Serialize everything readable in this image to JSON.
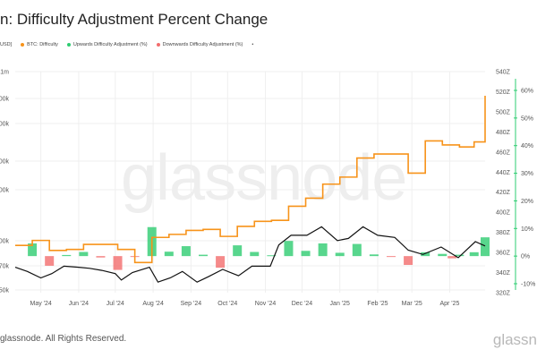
{
  "header": {
    "title": "n: Difficulty Adjustment Percent Change"
  },
  "legend": {
    "currency": "USD]",
    "items": [
      {
        "label": "BTC: Difficulty",
        "color": "#f7931a"
      },
      {
        "label": "Upwards Difficulty Adjustment (%)",
        "color": "#2ecc71"
      },
      {
        "label": "Downwards Difficulty Adjustment (%)",
        "color": "#f26d6d"
      }
    ],
    "trailing_mark": "•"
  },
  "watermark": "glassnode",
  "footer": {
    "copyright": "glassnode. All Rights Reserved.",
    "logo": "glassn"
  },
  "chart_data": {
    "type": "line",
    "x_ticks": [
      "May '24",
      "Jun '24",
      "Jul '24",
      "Aug '24",
      "Sep '24",
      "Oct '24",
      "Nov '24",
      "Dec '24",
      "Jan '25",
      "Feb '25",
      "Mar '25",
      "Apr '25"
    ],
    "left_axis": {
      "ticks": [
        "$1m",
        "00k",
        "00k",
        "00k",
        "00k",
        "00k",
        "70k",
        "50k"
      ]
    },
    "difficulty_axis": {
      "ticks": [
        "540Z",
        "520Z",
        "500Z",
        "480Z",
        "460Z",
        "440Z",
        "420Z",
        "400Z",
        "380Z",
        "360Z",
        "340Z",
        "320Z"
      ],
      "range": [
        320,
        540
      ],
      "unit": "Z"
    },
    "pct_axis": {
      "ticks": [
        "60%",
        "50%",
        "40%",
        "30%",
        "20%",
        "10%",
        "0%",
        "-10%"
      ],
      "range": [
        -10,
        60
      ]
    },
    "grid": true,
    "series": [
      {
        "name": "BTC: Difficulty",
        "type": "step",
        "color": "#f7931a",
        "points": [
          {
            "x": "2024-04-10",
            "y": 367
          },
          {
            "x": "2024-04-22",
            "y": 367
          },
          {
            "x": "2024-04-24",
            "y": 372
          },
          {
            "x": "2024-05-08",
            "y": 362
          },
          {
            "x": "2024-05-22",
            "y": 363
          },
          {
            "x": "2024-06-05",
            "y": 368
          },
          {
            "x": "2024-06-19",
            "y": 368
          },
          {
            "x": "2024-07-03",
            "y": 363
          },
          {
            "x": "2024-07-17",
            "y": 350
          },
          {
            "x": "2024-07-31",
            "y": 375
          },
          {
            "x": "2024-08-14",
            "y": 378
          },
          {
            "x": "2024-08-28",
            "y": 382
          },
          {
            "x": "2024-09-11",
            "y": 383
          },
          {
            "x": "2024-09-25",
            "y": 376
          },
          {
            "x": "2024-10-09",
            "y": 386
          },
          {
            "x": "2024-10-23",
            "y": 391
          },
          {
            "x": "2024-11-06",
            "y": 392
          },
          {
            "x": "2024-11-20",
            "y": 406
          },
          {
            "x": "2024-12-04",
            "y": 414
          },
          {
            "x": "2024-12-18",
            "y": 428
          },
          {
            "x": "2025-01-01",
            "y": 435
          },
          {
            "x": "2025-01-15",
            "y": 454
          },
          {
            "x": "2025-01-29",
            "y": 458
          },
          {
            "x": "2025-02-12",
            "y": 458
          },
          {
            "x": "2025-02-26",
            "y": 439
          },
          {
            "x": "2025-03-12",
            "y": 471
          },
          {
            "x": "2025-03-26",
            "y": 467
          },
          {
            "x": "2025-04-09",
            "y": 465
          },
          {
            "x": "2025-04-21",
            "y": 470
          },
          {
            "x": "2025-04-30",
            "y": 516
          }
        ]
      },
      {
        "name": "BTC Price",
        "type": "line",
        "color": "#111111",
        "axis": "left",
        "points": [
          {
            "x": "2024-04-10",
            "y": 68
          },
          {
            "x": "2024-04-20",
            "y": 64
          },
          {
            "x": "2024-05-01",
            "y": 58
          },
          {
            "x": "2024-05-10",
            "y": 62
          },
          {
            "x": "2024-05-20",
            "y": 69
          },
          {
            "x": "2024-06-01",
            "y": 68
          },
          {
            "x": "2024-06-10",
            "y": 67
          },
          {
            "x": "2024-06-20",
            "y": 65
          },
          {
            "x": "2024-07-01",
            "y": 62
          },
          {
            "x": "2024-07-06",
            "y": 56
          },
          {
            "x": "2024-07-15",
            "y": 63
          },
          {
            "x": "2024-07-29",
            "y": 68
          },
          {
            "x": "2024-08-05",
            "y": 54
          },
          {
            "x": "2024-08-15",
            "y": 58
          },
          {
            "x": "2024-08-25",
            "y": 64
          },
          {
            "x": "2024-09-06",
            "y": 54
          },
          {
            "x": "2024-09-15",
            "y": 59
          },
          {
            "x": "2024-09-27",
            "y": 66
          },
          {
            "x": "2024-10-10",
            "y": 60
          },
          {
            "x": "2024-10-21",
            "y": 69
          },
          {
            "x": "2024-11-05",
            "y": 69
          },
          {
            "x": "2024-11-12",
            "y": 89
          },
          {
            "x": "2024-11-22",
            "y": 98
          },
          {
            "x": "2024-12-05",
            "y": 98
          },
          {
            "x": "2024-12-17",
            "y": 106
          },
          {
            "x": "2024-12-30",
            "y": 93
          },
          {
            "x": "2025-01-08",
            "y": 95
          },
          {
            "x": "2025-01-20",
            "y": 106
          },
          {
            "x": "2025-02-01",
            "y": 98
          },
          {
            "x": "2025-02-15",
            "y": 96
          },
          {
            "x": "2025-02-26",
            "y": 84
          },
          {
            "x": "2025-03-10",
            "y": 80
          },
          {
            "x": "2025-03-25",
            "y": 87
          },
          {
            "x": "2025-04-08",
            "y": 77
          },
          {
            "x": "2025-04-22",
            "y": 92
          },
          {
            "x": "2025-04-30",
            "y": 88
          }
        ]
      },
      {
        "name": "Upwards Difficulty Adjustment (%)",
        "type": "bar",
        "color": "#2ecc71",
        "points": [
          {
            "x": "2024-04-24",
            "y": 4.6
          },
          {
            "x": "2024-05-22",
            "y": 0.4
          },
          {
            "x": "2024-06-05",
            "y": 1.5
          },
          {
            "x": "2024-07-31",
            "y": 10.5
          },
          {
            "x": "2024-08-14",
            "y": 1.6
          },
          {
            "x": "2024-08-28",
            "y": 3.6
          },
          {
            "x": "2024-09-11",
            "y": 0.5
          },
          {
            "x": "2024-10-09",
            "y": 3.9
          },
          {
            "x": "2024-10-23",
            "y": 1.5
          },
          {
            "x": "2024-11-06",
            "y": 0.3
          },
          {
            "x": "2024-11-20",
            "y": 5.5
          },
          {
            "x": "2024-12-04",
            "y": 1.9
          },
          {
            "x": "2024-12-18",
            "y": 4.6
          },
          {
            "x": "2025-01-01",
            "y": 1.2
          },
          {
            "x": "2025-01-15",
            "y": 4.4
          },
          {
            "x": "2025-01-29",
            "y": 0.6
          },
          {
            "x": "2025-03-12",
            "y": 1.4
          },
          {
            "x": "2025-03-26",
            "y": 0.8
          },
          {
            "x": "2025-04-09",
            "y": 0.5
          },
          {
            "x": "2025-04-21",
            "y": 1.4
          },
          {
            "x": "2025-04-30",
            "y": 6.8
          }
        ]
      },
      {
        "name": "Downwards Difficulty Adjustment (%)",
        "type": "bar",
        "color": "#f26d6d",
        "points": [
          {
            "x": "2024-05-08",
            "y": -3.5
          },
          {
            "x": "2024-06-19",
            "y": -0.5
          },
          {
            "x": "2024-07-03",
            "y": -5.0
          },
          {
            "x": "2024-07-17",
            "y": -0.3
          },
          {
            "x": "2024-09-25",
            "y": -4.2
          },
          {
            "x": "2025-02-12",
            "y": -0.2
          },
          {
            "x": "2025-02-26",
            "y": -3.2
          },
          {
            "x": "2025-04-03",
            "y": -0.8
          }
        ]
      }
    ]
  }
}
